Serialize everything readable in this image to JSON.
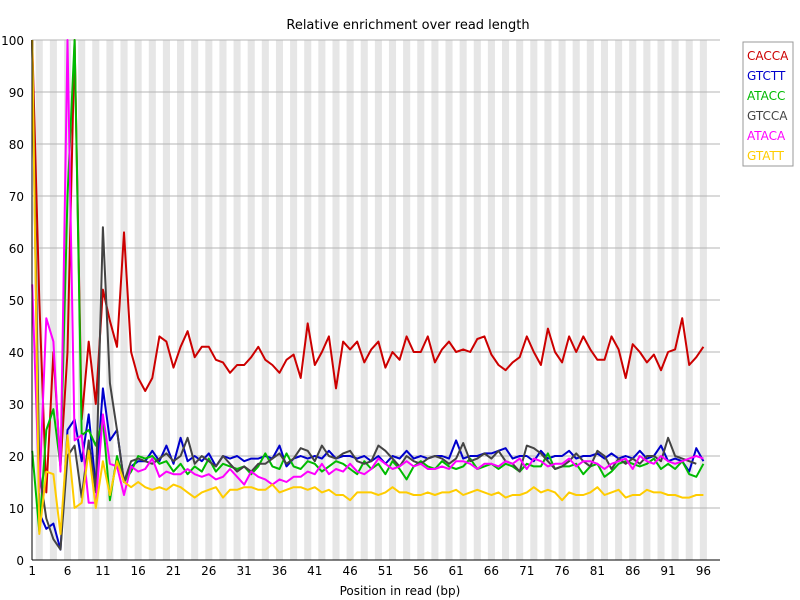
{
  "chart_data": {
    "type": "line",
    "title": "Relative enrichment over read length",
    "xlabel": "Position in read (bp)",
    "ylabel": "",
    "xlim": [
      1,
      96
    ],
    "ylim": [
      0,
      100
    ],
    "x_ticks": [
      1,
      6,
      11,
      16,
      21,
      26,
      31,
      36,
      41,
      46,
      51,
      56,
      61,
      66,
      71,
      76,
      81,
      86,
      91,
      96
    ],
    "y_ticks": [
      0,
      10,
      20,
      30,
      40,
      50,
      60,
      70,
      80,
      90,
      100
    ],
    "x_tick_labels": [
      "1",
      "6",
      "11",
      "16",
      "21",
      "26",
      "31",
      "36",
      "41",
      "46",
      "51",
      "56",
      "61",
      "66",
      "71",
      "76",
      "81",
      "86",
      "91",
      "96"
    ],
    "y_tick_labels": [
      "0",
      "10",
      "20",
      "30",
      "40",
      "50",
      "60",
      "70",
      "80",
      "90",
      "100"
    ],
    "grid": true,
    "legend_position": "top-right",
    "series": [
      {
        "name": "CACCA",
        "color": "#cc0000",
        "values": [
          100,
          50,
          13,
          40,
          18,
          40,
          100,
          27,
          42,
          30,
          52,
          46,
          41,
          63,
          40,
          35,
          32.5,
          35,
          43,
          42,
          37,
          41,
          44,
          39,
          41,
          41,
          38.5,
          38,
          36,
          37.5,
          37.5,
          39,
          41,
          38.5,
          37.5,
          36,
          38.5,
          39.5,
          35,
          45.5,
          37.5,
          40,
          43,
          33,
          42,
          40.5,
          42,
          38,
          40.5,
          42,
          37,
          40,
          38.5,
          43,
          40,
          40,
          43,
          38,
          40.5,
          42,
          40,
          40.5,
          40,
          42.5,
          43,
          39.5,
          37.5,
          36.5,
          38,
          39,
          43,
          40,
          37.5,
          44.5,
          40,
          38,
          43,
          40,
          43,
          40.5,
          38.5,
          38.5,
          43,
          40.5,
          35,
          41.5,
          40,
          38,
          39.5,
          36.5,
          40,
          40.5,
          46.5,
          37.5,
          39,
          41
        ]
      },
      {
        "name": "GTCTT",
        "color": "#0000cc",
        "values": [
          100,
          9,
          6,
          7,
          2,
          25,
          27,
          19,
          28,
          14,
          33,
          23,
          25,
          15,
          18,
          19,
          19,
          21,
          19,
          22,
          18.5,
          23.5,
          19,
          20,
          19,
          20.5,
          18,
          20,
          19.5,
          20,
          19,
          19.5,
          19.5,
          20,
          19.5,
          22,
          18,
          19.5,
          20,
          19.5,
          20,
          19.5,
          21,
          19.5,
          20,
          20,
          19.5,
          20,
          19,
          20,
          18.5,
          20,
          19.5,
          21,
          19.5,
          20,
          19.5,
          20,
          20,
          19.5,
          23,
          19.5,
          20,
          20,
          20.5,
          20.5,
          21,
          21.5,
          19.5,
          20,
          20,
          19,
          21,
          19.5,
          20,
          20,
          21,
          19.5,
          20,
          20,
          20.5,
          19.5,
          20.5,
          19.5,
          20,
          19.5,
          21,
          19.5,
          20,
          22,
          19,
          19.5,
          19,
          17,
          21.5,
          19
        ]
      },
      {
        "name": "ATACC",
        "color": "#00bb00",
        "values": [
          21,
          5.5,
          25,
          29,
          18,
          70,
          100,
          24,
          25,
          22,
          27,
          11.5,
          20,
          15,
          17,
          20,
          19.5,
          20,
          18.5,
          19,
          17,
          18.5,
          16.5,
          18,
          17,
          19.5,
          17,
          18.5,
          18,
          17.5,
          18,
          16.5,
          18,
          20.5,
          18,
          17.5,
          20.5,
          18,
          17.5,
          19,
          18.5,
          17,
          18,
          19,
          18.5,
          17.5,
          16.5,
          19,
          17.5,
          18.5,
          16.5,
          19,
          17.5,
          15.5,
          18,
          19,
          18,
          17.5,
          19,
          18,
          17.5,
          18,
          19.5,
          17.5,
          18,
          18.5,
          17.5,
          18.5,
          18,
          17,
          18.5,
          18,
          18,
          20.5,
          17.5,
          18,
          18,
          18.5,
          16.5,
          18,
          18.5,
          16,
          17,
          18.5,
          19,
          18.5,
          18,
          18.5,
          19.5,
          17.5,
          18.5,
          17.5,
          19,
          16.5,
          16,
          18.5
        ]
      },
      {
        "name": "GTCCA",
        "color": "#444444",
        "values": [
          100,
          17,
          8,
          4,
          2,
          20,
          22,
          12,
          23,
          13,
          64,
          34,
          25,
          15,
          19,
          19.5,
          19,
          18.5,
          19.5,
          20.5,
          19,
          20,
          23.5,
          18.5,
          20,
          19,
          18,
          20,
          18.5,
          17,
          18,
          17,
          18.5,
          18.5,
          19.5,
          20.5,
          18.5,
          19.5,
          21.5,
          21,
          19,
          22,
          20,
          19.5,
          20.5,
          21,
          19,
          18.5,
          19,
          22,
          21,
          19.5,
          18,
          20,
          19,
          18.5,
          19.5,
          20,
          19.5,
          18.5,
          19.5,
          22.5,
          19,
          19.5,
          20.5,
          19.5,
          21,
          19,
          18.5,
          17,
          22,
          21.5,
          20.5,
          19,
          17.5,
          18,
          19,
          20.5,
          19,
          18,
          21,
          20,
          17.5,
          19.5,
          18.5,
          19.5,
          18.5,
          20,
          20,
          19,
          23.5,
          20,
          19.5,
          19,
          18.5
        ]
      },
      {
        "name": "ATACA",
        "color": "#ff00ff",
        "values": [
          53,
          13,
          46.5,
          42,
          17,
          100,
          23,
          24,
          11,
          11,
          28,
          18.5,
          18,
          12.5,
          18,
          17,
          17.5,
          19.5,
          16,
          17,
          16.5,
          16.5,
          17.5,
          16.5,
          16,
          16.5,
          15.5,
          16,
          17.5,
          16,
          14.5,
          17,
          16,
          15.5,
          14.5,
          15.5,
          15,
          16,
          16,
          17,
          16.5,
          18.5,
          16.5,
          17.5,
          17,
          18.5,
          17,
          16.5,
          17.5,
          19.5,
          18.5,
          17.5,
          18,
          19,
          18,
          18.5,
          17.5,
          17.5,
          18,
          17.5,
          19,
          19,
          18.5,
          17.5,
          18.5,
          18.5,
          18,
          19,
          18.5,
          19.5,
          17.5,
          19.5,
          19,
          18,
          18.5,
          18.5,
          19.5,
          18,
          19,
          19,
          18.5,
          17.5,
          18.5,
          19,
          19.5,
          17.5,
          20,
          19,
          18.5,
          20,
          19,
          18.5,
          19,
          19.5,
          20,
          19.5
        ]
      },
      {
        "name": "GTATT",
        "color": "#ffcc00",
        "values": [
          100,
          5,
          17,
          16.5,
          5,
          24,
          10,
          11,
          21,
          10,
          19,
          12.5,
          19,
          15,
          14,
          15,
          14,
          13.5,
          14,
          13.5,
          14.5,
          14,
          13,
          12,
          13,
          13.5,
          14,
          12,
          13.5,
          13.5,
          14,
          14,
          13.5,
          13.5,
          14.5,
          13,
          13.5,
          14,
          14,
          13.5,
          14,
          13,
          13.5,
          12.5,
          12.5,
          11.5,
          13,
          13,
          13,
          12.5,
          13,
          14,
          13,
          13,
          12.5,
          12.5,
          13,
          12.5,
          13,
          13,
          13.5,
          12.5,
          13,
          13.5,
          13,
          12.5,
          13,
          12,
          12.5,
          12.5,
          13,
          14,
          13,
          13.5,
          13,
          11.5,
          13,
          12.5,
          12.5,
          13,
          14,
          12.5,
          13,
          13.5,
          12,
          12.5,
          12.5,
          13.5,
          13,
          13,
          12.5,
          12.5,
          12,
          12,
          12.5,
          12.5
        ]
      }
    ]
  }
}
